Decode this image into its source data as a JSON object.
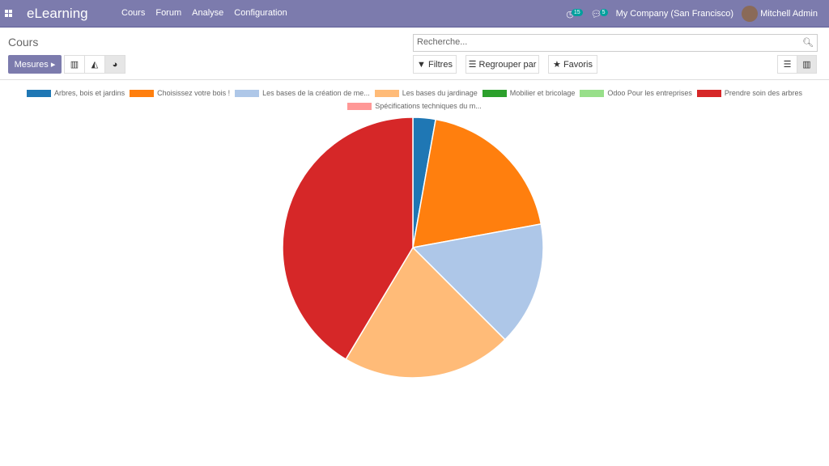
{
  "nav": {
    "brand": "eLearning",
    "menu": [
      "Cours",
      "Forum",
      "Analyse",
      "Configuration"
    ],
    "activity_count": "15",
    "message_count": "5",
    "company": "My Company (San Francisco)",
    "user": "Mitchell Admin"
  },
  "page": {
    "title": "Cours",
    "search_placeholder": "Recherche...",
    "mesures": "Mesures",
    "filters": "Filtres",
    "group_by": "Regrouper par",
    "favorites": "Favoris"
  },
  "chart_data": {
    "type": "pie",
    "labels": [
      "Arbres, bois et jardins",
      "Choisissez votre bois !",
      "Les bases de la création de me...",
      "Les bases du jardinage",
      "Mobilier et bricolage",
      "Odoo Pour les entreprises",
      "Prendre soin des arbres",
      "Spécifications techniques du m..."
    ],
    "values": [
      2.8,
      19.3,
      15.4,
      21.1,
      0,
      0,
      41.4,
      0
    ],
    "colors": [
      "#1f77b4",
      "#ff7f0e",
      "#aec7e8",
      "#ffbb78",
      "#2ca02c",
      "#98df8a",
      "#d62728",
      "#ff9896"
    ],
    "legend": "top"
  }
}
